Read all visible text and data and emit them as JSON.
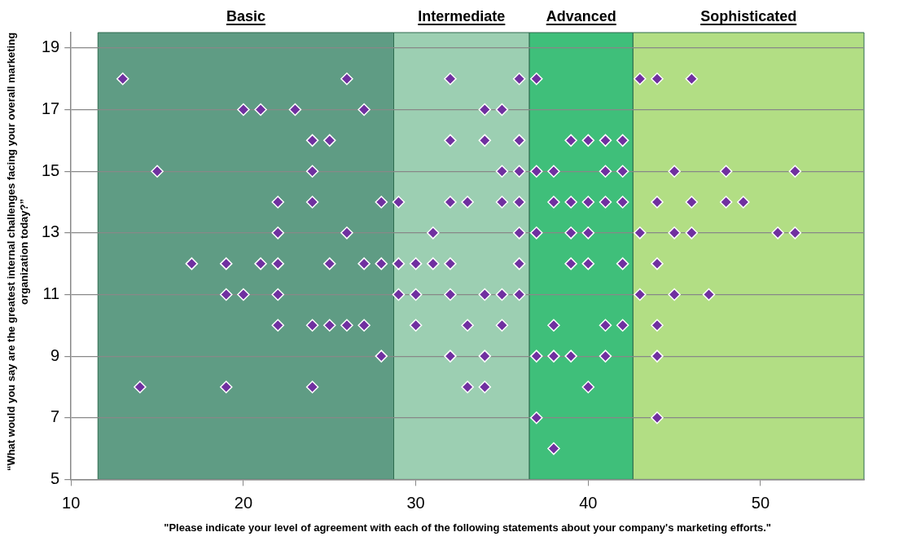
{
  "chart_data": {
    "type": "scatter",
    "xlabel": "\"Please indicate your level of agreement with each of the following statements about your company's marketing efforts.\"",
    "ylabel": "“What would you say are the greatest internal challenges facing your overall marketing organization today?”",
    "xlim": [
      10,
      56
    ],
    "xticks": [
      10,
      20,
      30,
      40,
      50
    ],
    "ylim": [
      5,
      19.5
    ],
    "yticks": [
      5,
      7,
      9,
      11,
      13,
      15,
      17,
      19
    ],
    "grid": "y",
    "legend": false,
    "marker": "diamond",
    "bands": [
      {
        "axis": "x",
        "from": 11.56,
        "to": 28.72,
        "label": "Basic",
        "color": "#5f9c84"
      },
      {
        "axis": "x",
        "from": 28.72,
        "to": 36.59,
        "label": "Intermediate",
        "color": "#9ccfb2"
      },
      {
        "axis": "x",
        "from": 36.59,
        "to": 42.6,
        "label": "Advanced",
        "color": "#3fbf7a"
      },
      {
        "axis": "x",
        "from": 42.6,
        "to": 56,
        "label": "Sophisticated",
        "color": "#b2de84"
      }
    ],
    "series": [
      {
        "color": "#7030a0",
        "x": [
          13,
          26,
          32,
          36,
          37,
          43,
          44,
          46,
          20,
          21,
          23,
          27,
          34,
          35,
          24,
          25,
          32,
          34,
          36,
          39,
          40,
          41,
          42,
          15,
          24,
          35,
          36,
          37,
          38,
          41,
          42,
          45,
          48,
          52,
          22,
          24,
          28,
          29,
          32,
          33,
          35,
          36,
          38,
          39,
          40,
          41,
          42,
          44,
          46,
          48,
          49,
          22,
          26,
          31,
          36,
          37,
          39,
          40,
          43,
          45,
          46,
          51,
          52,
          17,
          19,
          21,
          22,
          25,
          27,
          28,
          29,
          30,
          31,
          32,
          36,
          39,
          40,
          42,
          44,
          19,
          20,
          22,
          29,
          30,
          32,
          34,
          35,
          36,
          43,
          45,
          47,
          22,
          24,
          25,
          26,
          27,
          30,
          33,
          35,
          38,
          41,
          42,
          44,
          28,
          32,
          34,
          37,
          38,
          39,
          41,
          44,
          14,
          19,
          24,
          33,
          34,
          40,
          37,
          44,
          38
        ],
        "values": [
          18,
          18,
          18,
          18,
          18,
          18,
          18,
          18,
          17,
          17,
          17,
          17,
          17,
          17,
          16,
          16,
          16,
          16,
          16,
          16,
          16,
          16,
          16,
          15,
          15,
          15,
          15,
          15,
          15,
          15,
          15,
          15,
          15,
          15,
          14,
          14,
          14,
          14,
          14,
          14,
          14,
          14,
          14,
          14,
          14,
          14,
          14,
          14,
          14,
          14,
          14,
          13,
          13,
          13,
          13,
          13,
          13,
          13,
          13,
          13,
          13,
          13,
          13,
          12,
          12,
          12,
          12,
          12,
          12,
          12,
          12,
          12,
          12,
          12,
          12,
          12,
          12,
          12,
          12,
          11,
          11,
          11,
          11,
          11,
          11,
          11,
          11,
          11,
          11,
          11,
          11,
          10,
          10,
          10,
          10,
          10,
          10,
          10,
          10,
          10,
          10,
          10,
          10,
          9,
          9,
          9,
          9,
          9,
          9,
          9,
          9,
          8,
          8,
          8,
          8,
          8,
          8,
          7,
          7,
          6
        ]
      }
    ]
  }
}
